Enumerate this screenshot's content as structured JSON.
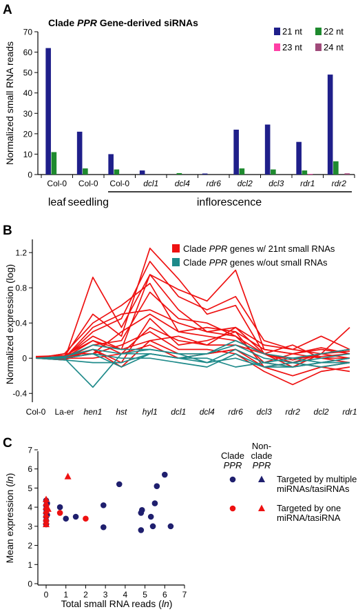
{
  "chart_data": [
    {
      "panel": "A",
      "type": "bar",
      "title_parts": [
        {
          "text": "Clade ",
          "italic": false
        },
        {
          "text": "PPR",
          "italic": true
        },
        {
          "text": " Gene-derived siRNAs",
          "italic": false
        }
      ],
      "ylabel": "Normalized small RNA reads",
      "ylim": [
        0,
        70
      ],
      "yticks": [
        0,
        10,
        20,
        30,
        40,
        50,
        60,
        70
      ],
      "categories": [
        {
          "label": "Col-0",
          "italic": false
        },
        {
          "label": "Col-0",
          "italic": false
        },
        {
          "label": "Col-0",
          "italic": false
        },
        {
          "label": "dcl1",
          "italic": true
        },
        {
          "label": "dcl4",
          "italic": true
        },
        {
          "label": "rdr6",
          "italic": true
        },
        {
          "label": "dcl2",
          "italic": true
        },
        {
          "label": "dcl3",
          "italic": true
        },
        {
          "label": "rdr1",
          "italic": true
        },
        {
          "label": "rdr2",
          "italic": true
        }
      ],
      "groups": [
        {
          "label": "leaf",
          "from": 0,
          "to": 0,
          "bracket": false
        },
        {
          "label": "seedling",
          "from": 1,
          "to": 1,
          "bracket": false
        },
        {
          "label": "inflorescence",
          "from": 2,
          "to": 9,
          "bracket": true
        }
      ],
      "series": [
        {
          "name": "21 nt",
          "color": "#1f1f8a",
          "values": [
            62,
            21,
            10,
            2,
            0,
            0.5,
            22,
            24.5,
            16,
            49
          ]
        },
        {
          "name": "22 nt",
          "color": "#1e8a2e",
          "values": [
            11,
            3,
            2.5,
            0,
            0.7,
            0,
            3,
            2.5,
            2,
            6.5
          ]
        },
        {
          "name": "23 nt",
          "color": "#ff3fa6",
          "values": [
            0,
            0,
            0,
            0,
            0,
            0,
            0,
            0,
            0.3,
            0
          ]
        },
        {
          "name": "24 nt",
          "color": "#a04a7a",
          "values": [
            0,
            0,
            0,
            0,
            0,
            0,
            0,
            0,
            0,
            0.6
          ]
        }
      ],
      "legend_placement": "top-right"
    },
    {
      "panel": "B",
      "type": "line",
      "ylabel": "Normalized expression (log)",
      "ylim": [
        -0.5,
        1.35
      ],
      "yticks": [
        -0.4,
        0,
        0.4,
        0.8,
        1.2
      ],
      "ytick_labels": [
        "-0.4",
        "0",
        "0.4",
        "0.8",
        "1.2"
      ],
      "categories": [
        {
          "label": "Col-0",
          "italic": false,
          "large": false
        },
        {
          "label": "La-er",
          "italic": false,
          "large": false
        },
        {
          "label": "hen1",
          "italic": true,
          "large": false
        },
        {
          "label": "hst",
          "italic": true,
          "large": true
        },
        {
          "label": "hyl1",
          "italic": true,
          "large": true
        },
        {
          "label": "dcl1",
          "italic": true,
          "large": false
        },
        {
          "label": "dcl4",
          "italic": true,
          "large": false
        },
        {
          "label": "rdr6",
          "italic": true,
          "large": false
        },
        {
          "label": "dcl3",
          "italic": true,
          "large": false
        },
        {
          "label": "rdr2",
          "italic": true,
          "large": false
        },
        {
          "label": "dcl2",
          "italic": true,
          "large": false
        },
        {
          "label": "rdr1",
          "italic": true,
          "large": false
        }
      ],
      "legend": [
        {
          "color": "#ee1111",
          "parts": [
            {
              "text": "Clade ",
              "italic": false
            },
            {
              "text": "PPR",
              "italic": true
            },
            {
              "text": " genes w/ 21nt small RNAs",
              "italic": false
            }
          ]
        },
        {
          "color": "#1e8a8a",
          "parts": [
            {
              "text": "Clade ",
              "italic": false
            },
            {
              "text": "PPR",
              "italic": true
            },
            {
              "text": " genes w/out small RNAs",
              "italic": false
            }
          ]
        }
      ],
      "series": [
        {
          "group": "red",
          "color": "#ee1111",
          "values": [
            0,
            -0.02,
            0.92,
            0.35,
            0.95,
            0.78,
            0.65,
            1.0,
            0.1,
            0.05,
            0.12,
            0.05
          ]
        },
        {
          "group": "red",
          "color": "#ee1111",
          "values": [
            0,
            0.02,
            0.5,
            0.25,
            1.25,
            0.9,
            0.5,
            0.6,
            0.05,
            -0.02,
            0.05,
            0.35
          ]
        },
        {
          "group": "red",
          "color": "#ee1111",
          "values": [
            0,
            0,
            0.3,
            0.45,
            1.1,
            0.7,
            0.55,
            0.7,
            0.2,
            0.1,
            0.05,
            0.1
          ]
        },
        {
          "group": "red",
          "color": "#ee1111",
          "values": [
            0.02,
            0,
            0.2,
            0.1,
            0.95,
            0.55,
            0.3,
            0.35,
            0.15,
            0.1,
            0.25,
            0.1
          ]
        },
        {
          "group": "red",
          "color": "#ee1111",
          "values": [
            0,
            0.05,
            0.4,
            0.6,
            0.85,
            0.3,
            0.35,
            0.3,
            0.1,
            0.05,
            0.1,
            0.05
          ]
        },
        {
          "group": "red",
          "color": "#ee1111",
          "values": [
            0,
            -0.01,
            0.15,
            0.2,
            0.75,
            0.45,
            0.4,
            0.25,
            0.05,
            -0.1,
            0.05,
            0.0
          ]
        },
        {
          "group": "red",
          "color": "#ee1111",
          "values": [
            0.01,
            0,
            0.35,
            0.5,
            0.55,
            0.4,
            0.3,
            0.25,
            -0.05,
            0.05,
            0.0,
            -0.05
          ]
        },
        {
          "group": "red",
          "color": "#ee1111",
          "values": [
            0,
            0.05,
            0.05,
            0.3,
            0.5,
            0.3,
            0.25,
            0.2,
            0.05,
            0.15,
            0.0,
            0.0
          ]
        },
        {
          "group": "red",
          "color": "#ee1111",
          "values": [
            0,
            0,
            0.1,
            -0.05,
            0.45,
            0.15,
            0.2,
            0.3,
            -0.1,
            -0.05,
            -0.1,
            -0.05
          ]
        },
        {
          "group": "red",
          "color": "#ee1111",
          "values": [
            0.02,
            0.03,
            0.2,
            0.05,
            0.35,
            0.2,
            0.15,
            0.15,
            0.05,
            -0.05,
            0.05,
            0.08
          ]
        },
        {
          "group": "red",
          "color": "#ee1111",
          "values": [
            0,
            0,
            0.05,
            0.15,
            0.3,
            0.1,
            0.1,
            0.05,
            -0.15,
            -0.3,
            -0.15,
            -0.1
          ]
        },
        {
          "group": "red",
          "color": "#ee1111",
          "values": [
            0,
            -0.02,
            0.1,
            -0.1,
            0.2,
            0.05,
            0.05,
            0.1,
            -0.1,
            -0.2,
            -0.1,
            -0.15
          ]
        },
        {
          "group": "red",
          "color": "#ee1111",
          "values": [
            0,
            0.01,
            0.25,
            0.1,
            0.2,
            0.25,
            0.15,
            0.35,
            0.05,
            0.0,
            0.02,
            0.05
          ]
        },
        {
          "group": "red",
          "color": "#ee1111",
          "values": [
            0,
            0,
            0.0,
            0.05,
            0.15,
            0.0,
            0.05,
            0.1,
            -0.05,
            -0.1,
            0.05,
            0.1
          ]
        },
        {
          "group": "teal",
          "color": "#1e8a8a",
          "values": [
            0,
            0.0,
            -0.33,
            0.05,
            0.1,
            0.05,
            -0.05,
            0.1,
            -0.05,
            -0.1,
            -0.05,
            -0.05
          ]
        },
        {
          "group": "teal",
          "color": "#1e8a8a",
          "values": [
            0,
            0.02,
            0.1,
            0.05,
            0.05,
            0.0,
            0.05,
            0.15,
            0.0,
            -0.05,
            0.0,
            0.05
          ]
        },
        {
          "group": "teal",
          "color": "#1e8a8a",
          "values": [
            0,
            0.0,
            0.05,
            0.0,
            0.0,
            -0.05,
            -0.1,
            0.05,
            -0.1,
            -0.05,
            -0.1,
            -0.05
          ]
        },
        {
          "group": "teal",
          "color": "#1e8a8a",
          "values": [
            0,
            -0.02,
            -0.05,
            -0.05,
            0.05,
            0.0,
            0.0,
            -0.1,
            -0.05,
            0.0,
            -0.05,
            0.0
          ]
        },
        {
          "group": "teal",
          "color": "#1e8a8a",
          "values": [
            0,
            0.01,
            0.15,
            0.1,
            0.1,
            0.05,
            0.05,
            0.2,
            0.05,
            0.0,
            0.05,
            0.1
          ]
        },
        {
          "group": "teal",
          "color": "#1e8a8a",
          "values": [
            0,
            0.0,
            0.05,
            -0.1,
            0.05,
            0.0,
            -0.05,
            0.0,
            -0.1,
            -0.1,
            -0.05,
            0.0
          ]
        }
      ]
    },
    {
      "panel": "C",
      "type": "scatter",
      "xlabel_parts": [
        {
          "text": "Total small RNA reads (",
          "italic": false
        },
        {
          "text": "ln",
          "italic": true
        },
        {
          "text": ")",
          "italic": false
        }
      ],
      "ylabel_parts": [
        {
          "text": "Mean expression (",
          "italic": false
        },
        {
          "text": "ln",
          "italic": true
        },
        {
          "text": ")",
          "italic": false
        }
      ],
      "xlim": [
        0,
        7
      ],
      "ylim": [
        0,
        7
      ],
      "xticks": [
        0,
        1,
        2,
        3,
        4,
        5,
        6,
        7
      ],
      "yticks": [
        0,
        1,
        2,
        3,
        4,
        5,
        6,
        7
      ],
      "legend": {
        "col_header_1": [
          {
            "text": "Clade",
            "italic": false
          },
          {
            "text": "PPR",
            "italic": true
          }
        ],
        "col_header_2": [
          {
            "text": "Non-",
            "italic": false
          },
          {
            "text": "clade",
            "italic": false
          },
          {
            "text": "PPR",
            "italic": true
          }
        ],
        "row_1": [
          "Targeted by multiple",
          "miRNAs/tasiRNAs"
        ],
        "row_2": [
          "Targeted by one",
          "miRNA/tasiRNA"
        ]
      },
      "series": [
        {
          "name": "Clade PPR, multiple",
          "marker": "circle",
          "color": "#1f1f6e",
          "points": [
            [
              0,
              4.35
            ],
            [
              0,
              4.1
            ],
            [
              0,
              3.9
            ],
            [
              0,
              3.7
            ],
            [
              0,
              3.5
            ],
            [
              0,
              3.3
            ],
            [
              0,
              3.1
            ],
            [
              0.05,
              4.2
            ],
            [
              0.05,
              3.6
            ],
            [
              0.7,
              4.0
            ],
            [
              1.0,
              3.4
            ],
            [
              1.5,
              3.5
            ],
            [
              2.9,
              4.1
            ],
            [
              2.9,
              2.95
            ],
            [
              3.7,
              5.2
            ],
            [
              4.8,
              3.7
            ],
            [
              4.8,
              2.8
            ],
            [
              4.85,
              3.85
            ],
            [
              5.3,
              3.5
            ],
            [
              5.4,
              3.0
            ],
            [
              5.5,
              4.2
            ],
            [
              5.6,
              5.1
            ],
            [
              6.0,
              5.7
            ],
            [
              6.3,
              3.0
            ]
          ]
        },
        {
          "name": "Non-clade PPR, multiple",
          "marker": "triangle",
          "color": "#1f1f6e",
          "points": []
        },
        {
          "name": "Clade PPR, one",
          "marker": "circle",
          "color": "#ee1111",
          "points": [
            [
              0.7,
              3.7
            ],
            [
              2.0,
              3.4
            ]
          ]
        },
        {
          "name": "Non-clade PPR, one",
          "marker": "triangle",
          "color": "#ee1111",
          "points": [
            [
              0,
              4.4
            ],
            [
              0,
              4.2
            ],
            [
              0,
              4.0
            ],
            [
              0,
              3.8
            ],
            [
              0,
              3.6
            ],
            [
              0,
              3.4
            ],
            [
              0,
              3.25
            ],
            [
              0,
              3.1
            ],
            [
              0.1,
              3.9
            ],
            [
              1.1,
              5.6
            ]
          ]
        }
      ]
    }
  ]
}
